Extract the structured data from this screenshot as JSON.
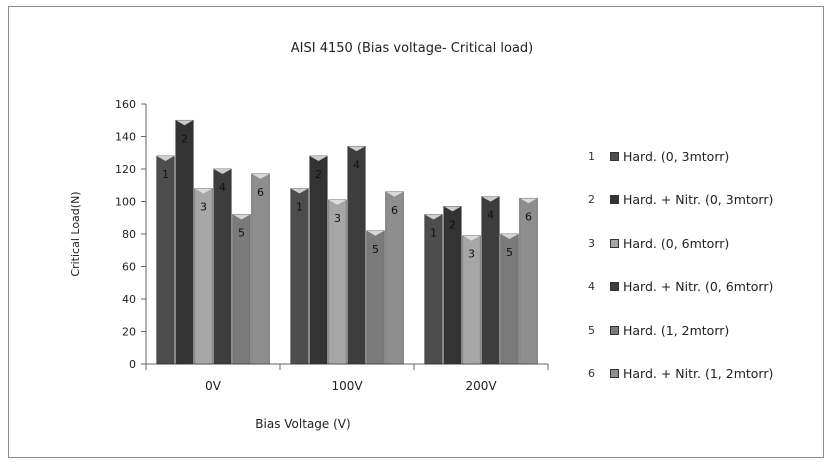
{
  "chart_data": {
    "type": "bar",
    "title": "AISI 4150 (Bias voltage- Critical load)",
    "xlabel": "Bias Voltage  (V)",
    "ylabel": "Critical Load(N)",
    "ylim": [
      0,
      160
    ],
    "yticks": [
      0,
      20,
      40,
      60,
      80,
      100,
      120,
      140,
      160
    ],
    "categories": [
      "0V",
      "100V",
      "200V"
    ],
    "grid": false,
    "legend_position": "right",
    "series": [
      {
        "label": "1",
        "name": "Hard. (0, 3mtorr)",
        "values": [
          128,
          108,
          92
        ],
        "color": "#4d4d4d"
      },
      {
        "label": "2",
        "name": "Hard. + Nitr. (0, 3mtorr)",
        "values": [
          150,
          128,
          97
        ],
        "color": "#333333"
      },
      {
        "label": "3",
        "name": "Hard. (0, 6mtorr)",
        "values": [
          108,
          101,
          79
        ],
        "color": "#a6a6a6"
      },
      {
        "label": "4",
        "name": "Hard. + Nitr. (0, 6mtorr)",
        "values": [
          120,
          134,
          103
        ],
        "color": "#3d3d3d"
      },
      {
        "label": "5",
        "name": "Hard. (1, 2mtorr)",
        "values": [
          92,
          82,
          80
        ],
        "color": "#7a7a7a"
      },
      {
        "label": "6",
        "name": "Hard. + Nitr. (1, 2mtorr)",
        "values": [
          117,
          106,
          102
        ],
        "color": "#8e8e8e"
      }
    ]
  }
}
